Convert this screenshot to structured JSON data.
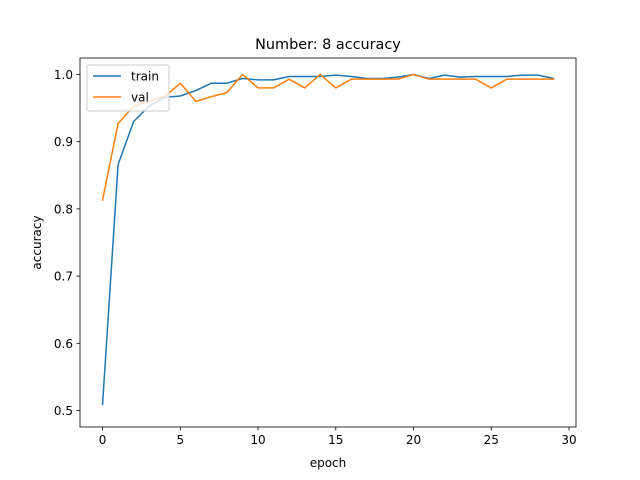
{
  "chart_data": {
    "type": "line",
    "title": "Number: 8 accuracy",
    "xlabel": "epoch",
    "ylabel": "accuracy",
    "xlim": [
      -1.45,
      30.45
    ],
    "ylim": [
      0.4755,
      1.0245
    ],
    "xticks": [
      0,
      5,
      10,
      15,
      20,
      25,
      30
    ],
    "yticks": [
      0.5,
      0.6,
      0.7,
      0.8,
      0.9,
      1.0
    ],
    "ytick_labels": [
      "0.5",
      "0.6",
      "0.7",
      "0.8",
      "0.9",
      "1.0"
    ],
    "grid": false,
    "legend_position": "upper-left",
    "x": [
      0,
      1,
      2,
      3,
      4,
      5,
      6,
      7,
      8,
      9,
      10,
      11,
      12,
      13,
      14,
      15,
      16,
      17,
      18,
      19,
      20,
      21,
      22,
      23,
      24,
      25,
      26,
      27,
      28,
      29
    ],
    "series": [
      {
        "name": "train",
        "color": "#1f77b4",
        "values": [
          0.509,
          0.866,
          0.93,
          0.953,
          0.966,
          0.968,
          0.976,
          0.987,
          0.987,
          0.994,
          0.992,
          0.992,
          0.997,
          0.997,
          0.997,
          0.999,
          0.997,
          0.994,
          0.994,
          0.996,
          1.0,
          0.994,
          0.999,
          0.996,
          0.997,
          0.997,
          0.997,
          0.999,
          0.999,
          0.994
        ]
      },
      {
        "name": "val",
        "color": "#ff7f0e",
        "values": [
          0.813,
          0.927,
          0.953,
          0.96,
          0.967,
          0.987,
          0.96,
          0.967,
          0.973,
          1.0,
          0.98,
          0.98,
          0.993,
          0.98,
          1.0,
          0.98,
          0.993,
          0.993,
          0.993,
          0.993,
          1.0,
          0.993,
          0.993,
          0.993,
          0.993,
          0.98,
          0.993,
          0.993,
          0.993,
          0.993
        ]
      }
    ]
  }
}
